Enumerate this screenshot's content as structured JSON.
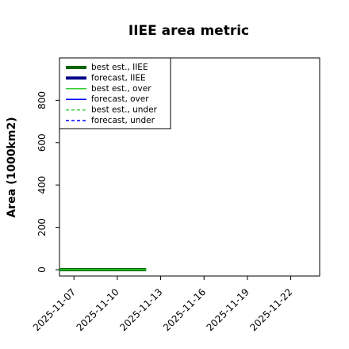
{
  "chart_data": {
    "type": "line",
    "title": "IIEE area metric",
    "xlabel": "",
    "ylabel": "Area (1000km2)",
    "x_ticks": [
      "2025-11-07",
      "2025-11-10",
      "2025-11-13",
      "2025-11-16",
      "2025-11-19",
      "2025-11-22"
    ],
    "highlighted_tick": "2025-11-13",
    "highlight_color": "#1a7a1a",
    "xlim": [
      "2025-11-06",
      "2025-11-24"
    ],
    "ylim": [
      -30,
      1000
    ],
    "y_ticks": [
      0,
      200,
      400,
      600,
      800
    ],
    "grid": false,
    "legend_position": "upper-left",
    "series": [
      {
        "name": "best est., IIEE",
        "color": "#006400",
        "style": "solid",
        "width": "thick",
        "x": [
          "2025-11-06",
          "2025-11-12"
        ],
        "y": [
          0,
          0
        ]
      },
      {
        "name": "forecast, IIEE",
        "color": "#00008b",
        "style": "solid",
        "width": "thick",
        "x": [],
        "y": []
      },
      {
        "name": "best est., over",
        "color": "#32cd32",
        "style": "solid",
        "width": "thin",
        "x": [
          "2025-11-06",
          "2025-11-12"
        ],
        "y": [
          0,
          0
        ]
      },
      {
        "name": "forecast, over",
        "color": "#0000ff",
        "style": "solid",
        "width": "thin",
        "x": [],
        "y": []
      },
      {
        "name": "best est., under",
        "color": "#32cd32",
        "style": "dashed",
        "width": "thin",
        "x": [],
        "y": []
      },
      {
        "name": "forecast, under",
        "color": "#0000ff",
        "style": "dashed",
        "width": "thin",
        "x": [],
        "y": []
      }
    ]
  }
}
